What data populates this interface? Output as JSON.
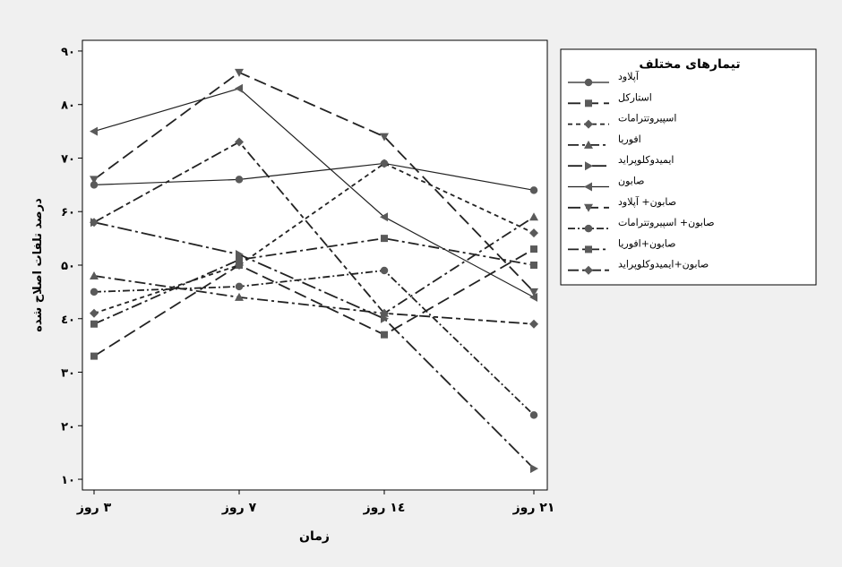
{
  "chart_data": {
    "type": "line",
    "categories": [
      "۳ روز",
      "۷ روز",
      "۱٤ روز",
      "۲۱ روز"
    ],
    "xlabel": "زمان",
    "ylabel": "درصد تلفات اصلاح شده",
    "ylim": [
      8,
      92
    ],
    "yticks": [
      10,
      20,
      30,
      40,
      50,
      60,
      70,
      80,
      90
    ],
    "ytick_labels": [
      "۱۰",
      "۲۰",
      "۳۰",
      "٤۰",
      "۵۰",
      "۶۰",
      "۷۰",
      "۸۰",
      "۹۰"
    ],
    "grid": false,
    "legend_position": "right",
    "legend_title": "تیمارهای مختلف",
    "series": [
      {
        "name": "آپلاود",
        "marker": "circle",
        "dash": "solid",
        "values": [
          65,
          66,
          69,
          64
        ]
      },
      {
        "name": "استارکل",
        "marker": "square",
        "dash": "long",
        "values": [
          33,
          50,
          37,
          53
        ]
      },
      {
        "name": "اسپیروتترامات",
        "marker": "diamond",
        "dash": "short",
        "values": [
          41,
          50,
          69,
          56
        ]
      },
      {
        "name": "افوریا",
        "marker": "triangle-up",
        "dash": "dashdot",
        "values": [
          48,
          44,
          41,
          59
        ]
      },
      {
        "name": "ایمیدوکلوپراید",
        "marker": "triangle-right",
        "dash": "dashdot-long",
        "values": [
          58,
          52,
          40,
          12
        ]
      },
      {
        "name": "صابون",
        "marker": "triangle-left",
        "dash": "solid",
        "values": [
          75,
          83,
          59,
          44
        ]
      },
      {
        "name": "صابون+ آپلاود",
        "marker": "triangle-down",
        "dash": "long",
        "values": [
          66,
          86,
          74,
          45
        ]
      },
      {
        "name": "صابون+ اسپیروتترامات",
        "marker": "circle",
        "dash": "dashdot-short",
        "values": [
          45,
          46,
          49,
          22
        ]
      },
      {
        "name": "صابون+افوریا",
        "marker": "square",
        "dash": "dashdot",
        "values": [
          39,
          51,
          55,
          50
        ]
      },
      {
        "name": "صابون+ایمیدوکلوپراید",
        "marker": "diamond",
        "dash": "long-short",
        "values": [
          58,
          73,
          41,
          39
        ]
      }
    ]
  }
}
